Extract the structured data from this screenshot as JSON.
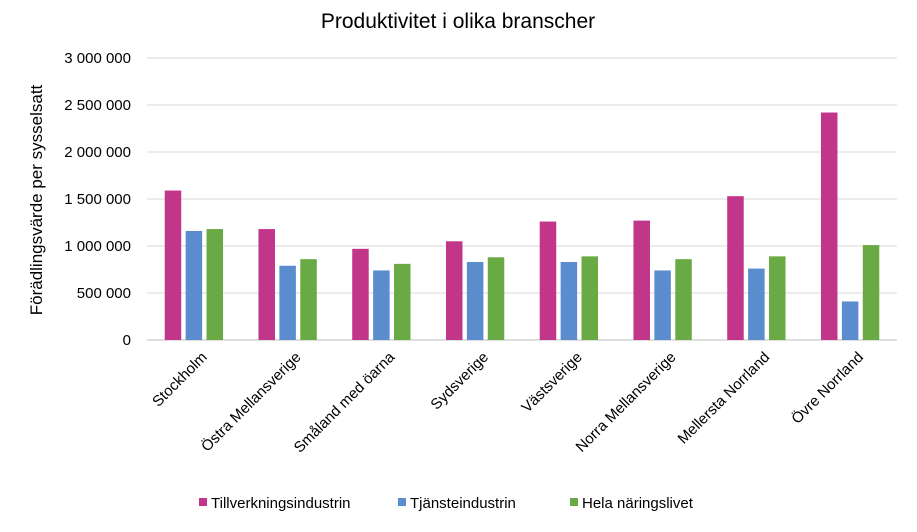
{
  "chart_data": {
    "type": "bar",
    "title": "Produktivitet i olika branscher",
    "ylabel": "Förädlingsvärde per sysselsatt",
    "xlabel": "",
    "ylim": [
      0,
      3000000
    ],
    "yticks": [
      0,
      500000,
      1000000,
      1500000,
      2000000,
      2500000,
      3000000
    ],
    "ytick_labels": [
      "0",
      "500 000",
      "1 000 000",
      "1 500 000",
      "2 000 000",
      "2 500 000",
      "3 000 000"
    ],
    "grid": true,
    "legend_position": "bottom",
    "categories": [
      "Stockholm",
      "Östra Mellansverige",
      "Småland med öarna",
      "Sydsverige",
      "Västsverige",
      "Norra Mellansverige",
      "Mellersta Norrland",
      "Övre Norrland"
    ],
    "series": [
      {
        "name": "Tillverkningsindustrin",
        "color": "#c2368a",
        "values": [
          1590000,
          1180000,
          970000,
          1050000,
          1260000,
          1270000,
          1530000,
          2420000
        ]
      },
      {
        "name": "Tjänsteindustrin",
        "color": "#5b8dce",
        "values": [
          1160000,
          790000,
          740000,
          830000,
          830000,
          740000,
          760000,
          410000
        ]
      },
      {
        "name": "Hela näringslivet",
        "color": "#6aaa45",
        "values": [
          1180000,
          860000,
          810000,
          880000,
          890000,
          860000,
          890000,
          1010000
        ]
      }
    ]
  }
}
